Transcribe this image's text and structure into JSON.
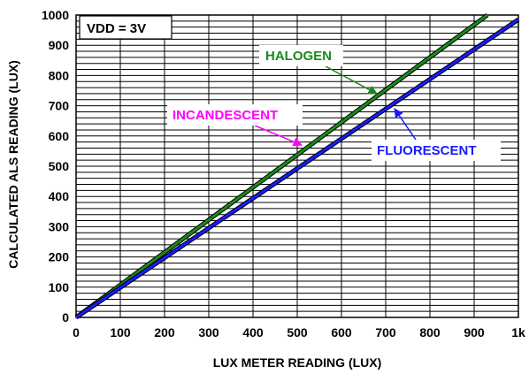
{
  "chart_data": {
    "type": "line",
    "xlabel": "LUX METER READING (LUX)",
    "ylabel": "CALCULATED ALS READING (LUX)",
    "xlim": [
      0,
      1000
    ],
    "ylim": [
      0,
      1000
    ],
    "x_ticks": [
      {
        "value": 0,
        "label": "0"
      },
      {
        "value": 100,
        "label": "100"
      },
      {
        "value": 200,
        "label": "200"
      },
      {
        "value": 300,
        "label": "300"
      },
      {
        "value": 400,
        "label": "400"
      },
      {
        "value": 500,
        "label": "500"
      },
      {
        "value": 600,
        "label": "600"
      },
      {
        "value": 700,
        "label": "700"
      },
      {
        "value": 800,
        "label": "800"
      },
      {
        "value": 900,
        "label": "900"
      },
      {
        "value": 1000,
        "label": "1k"
      }
    ],
    "y_ticks": [
      {
        "value": 0,
        "label": "0"
      },
      {
        "value": 100,
        "label": "100"
      },
      {
        "value": 200,
        "label": "200"
      },
      {
        "value": 300,
        "label": "300"
      },
      {
        "value": 400,
        "label": "400"
      },
      {
        "value": 500,
        "label": "500"
      },
      {
        "value": 600,
        "label": "600"
      },
      {
        "value": 700,
        "label": "700"
      },
      {
        "value": 800,
        "label": "800"
      },
      {
        "value": 900,
        "label": "900"
      },
      {
        "value": 1000,
        "label": "1000"
      }
    ],
    "minor_y_step": 20,
    "grid": true,
    "condition_label": "VDD = 3V",
    "series": [
      {
        "name": "INCANDESCENT",
        "color": "#ff00ff",
        "style": "dashed",
        "x": [
          0,
          930
        ],
        "y": [
          0,
          1000
        ]
      },
      {
        "name": "HALOGEN",
        "color": "#1a8a1a",
        "style": "solid",
        "x": [
          0,
          930
        ],
        "y": [
          0,
          1000
        ]
      },
      {
        "name": "FLUORESCENT",
        "color": "#1a1aff",
        "style": "solid",
        "x": [
          0,
          1000
        ],
        "y": [
          0,
          985
        ]
      }
    ],
    "annotations": [
      {
        "series": 0,
        "text": "INCANDESCENT",
        "color": "#ff00ff",
        "arrow_to": [
          510,
          570
        ]
      },
      {
        "series": 1,
        "text": "HALOGEN",
        "color": "#1a8a1a",
        "arrow_to": [
          680,
          740
        ]
      },
      {
        "series": 2,
        "text": "FLUORESCENT",
        "color": "#1a1aff",
        "arrow_to": [
          720,
          690
        ]
      }
    ]
  }
}
